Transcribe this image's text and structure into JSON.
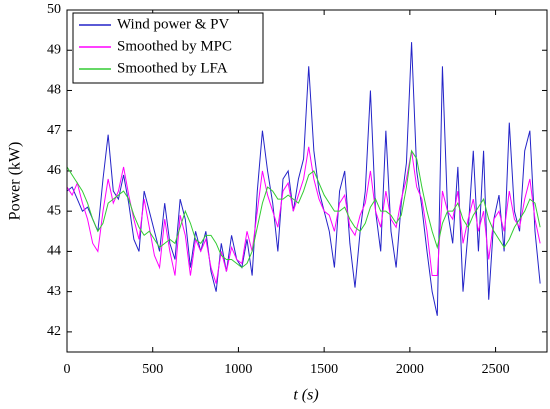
{
  "chart_data": {
    "type": "line",
    "xlabel": "t (s)",
    "ylabel": "Power (kW)",
    "xlim": [
      0,
      2800
    ],
    "ylim": [
      41.5,
      50
    ],
    "xticks": [
      0,
      500,
      1000,
      1500,
      2000,
      2500
    ],
    "yticks": [
      42,
      43,
      44,
      45,
      46,
      47,
      48,
      49,
      50
    ],
    "legend": "upper left",
    "x": [
      0,
      30,
      60,
      90,
      120,
      150,
      180,
      210,
      240,
      270,
      300,
      330,
      360,
      390,
      420,
      450,
      480,
      510,
      540,
      570,
      600,
      630,
      660,
      690,
      720,
      750,
      780,
      810,
      840,
      870,
      900,
      930,
      960,
      990,
      1020,
      1050,
      1080,
      1110,
      1140,
      1170,
      1200,
      1230,
      1260,
      1290,
      1320,
      1350,
      1380,
      1410,
      1440,
      1470,
      1500,
      1530,
      1560,
      1590,
      1620,
      1650,
      1680,
      1710,
      1740,
      1770,
      1800,
      1830,
      1860,
      1890,
      1920,
      1950,
      1980,
      2010,
      2040,
      2070,
      2100,
      2130,
      2160,
      2190,
      2220,
      2250,
      2280,
      2310,
      2340,
      2370,
      2400,
      2430,
      2460,
      2490,
      2520,
      2550,
      2580,
      2610,
      2640,
      2670,
      2700,
      2730,
      2760
    ],
    "series": [
      {
        "name": "Wind power & PV",
        "color": "#2424c8",
        "values": [
          45.5,
          45.6,
          45.3,
          45.0,
          45.1,
          44.8,
          44.5,
          45.8,
          46.9,
          45.5,
          45.3,
          45.9,
          45.2,
          44.3,
          44.0,
          45.5,
          45.0,
          44.5,
          44.0,
          45.2,
          44.2,
          43.8,
          45.3,
          44.8,
          43.6,
          44.5,
          44.0,
          44.5,
          43.5,
          43.0,
          44.2,
          43.5,
          44.4,
          43.8,
          43.6,
          44.3,
          43.4,
          45.5,
          47.0,
          46.0,
          45.2,
          44.0,
          45.8,
          46.0,
          45.0,
          45.8,
          46.3,
          48.6,
          46.5,
          45.5,
          45.0,
          44.5,
          43.6,
          45.5,
          46.0,
          44.2,
          43.1,
          44.5,
          45.5,
          48.0,
          45.0,
          44.0,
          47.0,
          44.5,
          43.6,
          45.2,
          46.2,
          49.2,
          46.0,
          45.1,
          44.0,
          43.0,
          42.4,
          48.6,
          45.0,
          44.2,
          46.1,
          43.0,
          44.5,
          46.5,
          44.0,
          46.5,
          42.8,
          44.8,
          45.4,
          44.0,
          47.2,
          45.0,
          44.5,
          46.5,
          47.0,
          44.5,
          43.2
        ]
      },
      {
        "name": "Smoothed by MPC",
        "color": "#ff00ff",
        "values": [
          45.6,
          45.4,
          45.7,
          45.2,
          44.8,
          44.2,
          44.0,
          45.0,
          45.8,
          45.2,
          45.5,
          46.1,
          45.4,
          44.8,
          44.3,
          45.3,
          44.6,
          43.9,
          43.6,
          44.8,
          44.0,
          43.4,
          44.9,
          44.4,
          43.4,
          44.3,
          44.0,
          44.3,
          43.6,
          43.2,
          44.0,
          43.5,
          44.1,
          43.8,
          43.7,
          44.5,
          44.0,
          45.0,
          46.0,
          45.4,
          45.0,
          44.6,
          45.5,
          45.7,
          45.0,
          45.4,
          45.8,
          46.6,
          45.8,
          45.3,
          45.0,
          44.9,
          44.5,
          45.2,
          45.4,
          44.6,
          44.4,
          44.9,
          45.2,
          46.0,
          45.0,
          44.6,
          45.5,
          44.8,
          44.6,
          45.3,
          45.8,
          46.5,
          45.6,
          45.3,
          44.5,
          43.4,
          43.4,
          45.5,
          45.0,
          44.8,
          45.5,
          44.2,
          44.8,
          45.3,
          44.5,
          45.0,
          43.8,
          44.8,
          45.0,
          44.5,
          45.5,
          44.8,
          44.6,
          45.3,
          45.8,
          44.8,
          44.2
        ]
      },
      {
        "name": "Smoothed by LFA",
        "color": "#33cc33",
        "values": [
          46.1,
          45.9,
          45.7,
          45.5,
          45.2,
          44.8,
          44.5,
          44.7,
          45.2,
          45.3,
          45.4,
          45.5,
          45.3,
          44.9,
          44.6,
          44.4,
          44.5,
          44.3,
          44.1,
          44.2,
          44.3,
          44.2,
          44.6,
          45.0,
          44.7,
          44.3,
          44.2,
          44.4,
          44.4,
          44.2,
          43.9,
          43.8,
          43.8,
          43.7,
          43.6,
          43.7,
          44.0,
          44.6,
          45.2,
          45.6,
          45.5,
          45.3,
          45.3,
          45.4,
          45.3,
          45.2,
          45.5,
          45.9,
          46.0,
          45.7,
          45.4,
          45.2,
          45.0,
          45.0,
          45.1,
          44.8,
          44.6,
          44.5,
          44.7,
          45.1,
          45.3,
          45.0,
          45.0,
          44.9,
          44.7,
          44.9,
          45.6,
          46.5,
          46.3,
          45.6,
          45.0,
          44.5,
          44.1,
          44.7,
          45.0,
          45.0,
          45.2,
          44.8,
          44.6,
          44.9,
          45.1,
          45.3,
          44.8,
          44.5,
          44.3,
          44.1,
          44.3,
          44.6,
          44.8,
          45.0,
          45.3,
          45.2,
          44.6
        ]
      }
    ]
  }
}
